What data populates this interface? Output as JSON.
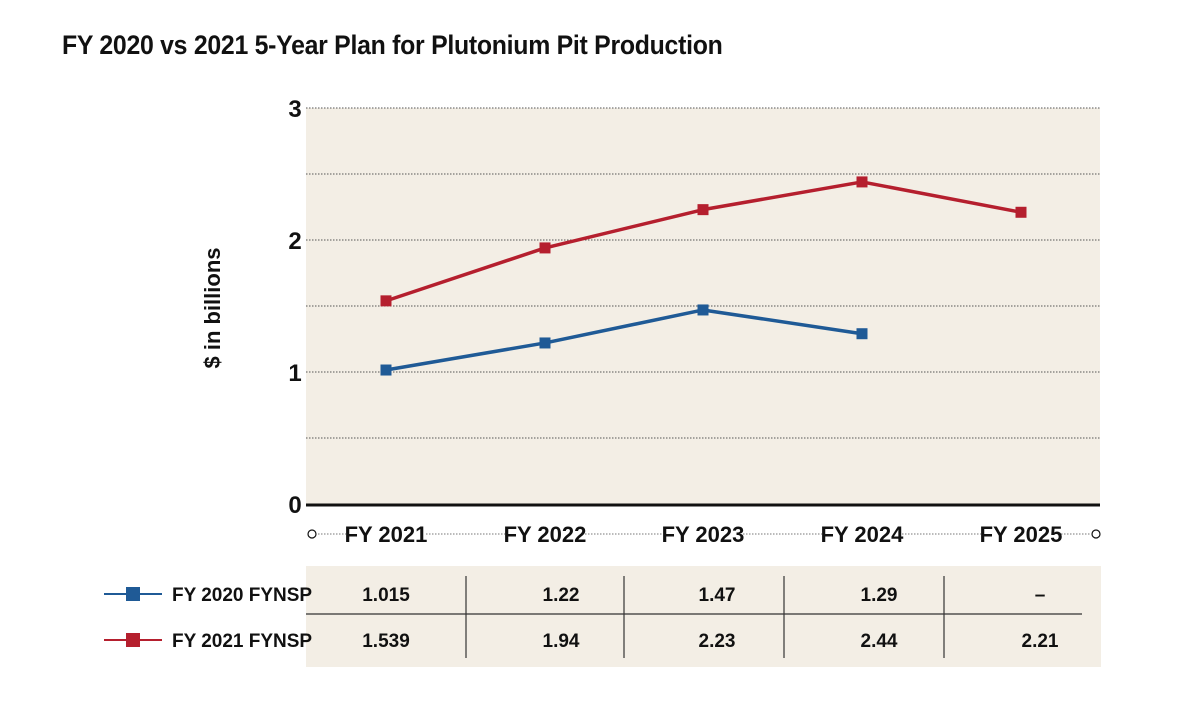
{
  "chart_data": {
    "type": "line",
    "title": "FY 2020 vs 2021 5-Year Plan for Plutonium Pit Production",
    "ylabel": "$ in billions",
    "xlabel": "",
    "ylim": [
      0,
      3
    ],
    "yticks": [
      "0",
      "1",
      "2",
      "3"
    ],
    "grid": true,
    "categories": [
      "FY 2021",
      "FY 2022",
      "FY 2023",
      "FY 2024",
      "FY 2025"
    ],
    "series": [
      {
        "name": "FY 2020 FYNSP",
        "color": "#1f5a96",
        "values": [
          1.015,
          1.22,
          1.47,
          1.29,
          null
        ],
        "table_values": [
          "1.015",
          "1.22",
          "1.47",
          "1.29",
          "–"
        ]
      },
      {
        "name": "FY 2021 FYNSP",
        "color": "#b51f2e",
        "values": [
          1.539,
          1.94,
          2.23,
          2.44,
          2.21
        ],
        "table_values": [
          "1.539",
          "1.94",
          "2.23",
          "2.44",
          "2.21"
        ]
      }
    ],
    "colors": {
      "plot_background": "#f3eee5",
      "axis": "#111111",
      "grid": "#555555"
    }
  }
}
